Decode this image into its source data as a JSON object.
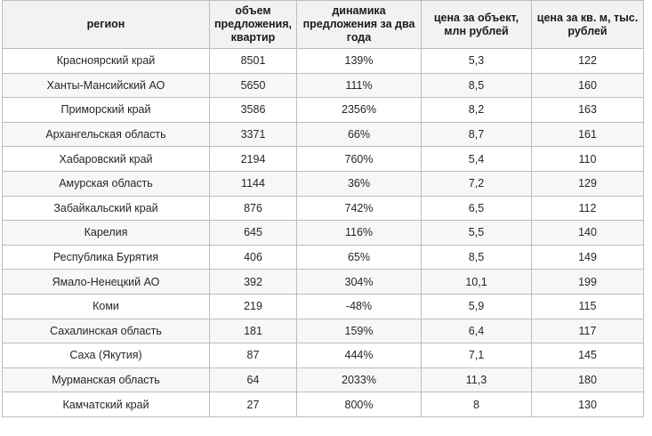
{
  "table": {
    "headers": {
      "region": "регион",
      "supply": "объем предложения, квартир",
      "dynamics": "динамика предложения за два года",
      "price_per_object": "цена за объект, млн рублей",
      "price_per_sqm": "цена за кв. м, тыс. рублей"
    },
    "rows": [
      {
        "region": "Красноярский край",
        "supply": "8501",
        "dynamics": "139%",
        "price": "5,3",
        "sqm": "122"
      },
      {
        "region": "Ханты-Мансийский АО",
        "supply": "5650",
        "dynamics": "111%",
        "price": "8,5",
        "sqm": "160"
      },
      {
        "region": "Приморский край",
        "supply": "3586",
        "dynamics": "2356%",
        "price": "8,2",
        "sqm": "163"
      },
      {
        "region": "Архангельская область",
        "supply": "3371",
        "dynamics": "66%",
        "price": "8,7",
        "sqm": "161"
      },
      {
        "region": "Хабаровский край",
        "supply": "2194",
        "dynamics": "760%",
        "price": "5,4",
        "sqm": "110"
      },
      {
        "region": "Амурская область",
        "supply": "1144",
        "dynamics": "36%",
        "price": "7,2",
        "sqm": "129"
      },
      {
        "region": "Забайкальский край",
        "supply": "876",
        "dynamics": "742%",
        "price": "6,5",
        "sqm": "112"
      },
      {
        "region": "Карелия",
        "supply": "645",
        "dynamics": "116%",
        "price": "5,5",
        "sqm": "140"
      },
      {
        "region": "Республика Бурятия",
        "supply": "406",
        "dynamics": "65%",
        "price": "8,5",
        "sqm": "149"
      },
      {
        "region": "Ямало-Ненецкий АО",
        "supply": "392",
        "dynamics": "304%",
        "price": "10,1",
        "sqm": "199"
      },
      {
        "region": "Коми",
        "supply": "219",
        "dynamics": "-48%",
        "price": "5,9",
        "sqm": "115"
      },
      {
        "region": "Сахалинская область",
        "supply": "181",
        "dynamics": "159%",
        "price": "6,4",
        "sqm": "117"
      },
      {
        "region": "Саха (Якутия)",
        "supply": "87",
        "dynamics": "444%",
        "price": "7,1",
        "sqm": "145"
      },
      {
        "region": "Мурманская область",
        "supply": "64",
        "dynamics": "2033%",
        "price": "11,3",
        "sqm": "180"
      },
      {
        "region": "Камчатский край",
        "supply": "27",
        "dynamics": "800%",
        "price": "8",
        "sqm": "130"
      }
    ]
  }
}
